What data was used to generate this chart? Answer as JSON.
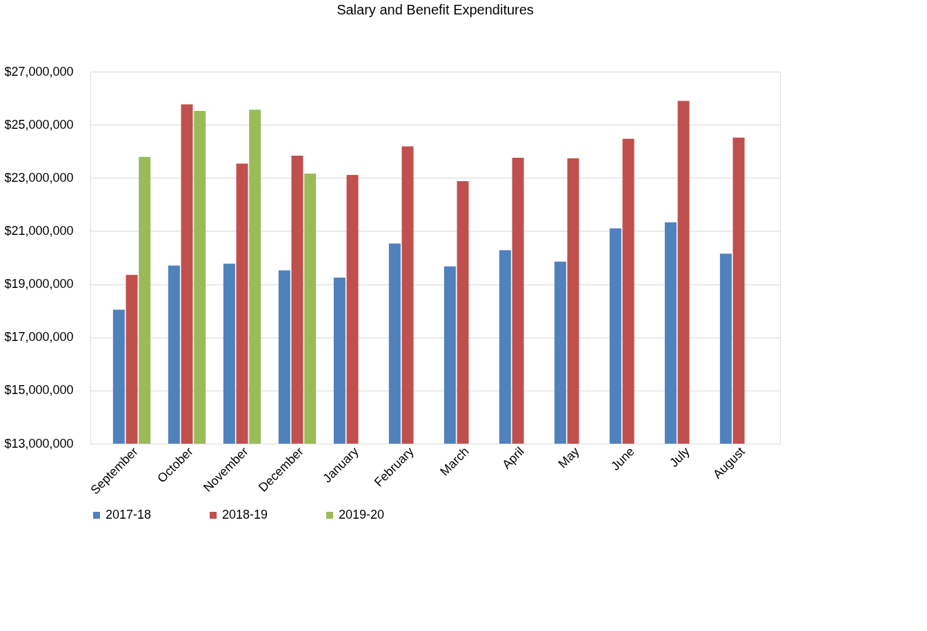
{
  "chart_data": {
    "type": "bar",
    "title": "Salary and Benefit Expenditures",
    "categories": [
      "September",
      "October",
      "November",
      "December",
      "January",
      "February",
      "March",
      "April",
      "May",
      "June",
      "July",
      "August"
    ],
    "series": [
      {
        "name": "2017-18",
        "color": "#4f81bd",
        "values": [
          18040000,
          19700000,
          19770000,
          19520000,
          19250000,
          20530000,
          19670000,
          20280000,
          19850000,
          21100000,
          21330000,
          20150000
        ]
      },
      {
        "name": "2018-19",
        "color": "#c0504d",
        "values": [
          19350000,
          25770000,
          23540000,
          23840000,
          23110000,
          24190000,
          22880000,
          23760000,
          23740000,
          24470000,
          25900000,
          24520000
        ]
      },
      {
        "name": "2019-20",
        "color": "#9bbb59",
        "values": [
          23790000,
          25520000,
          25570000,
          23160000,
          null,
          null,
          null,
          null,
          null,
          null,
          null,
          null
        ]
      }
    ],
    "ylim": [
      13000000,
      27000000
    ],
    "yticks": [
      {
        "value": 13000000,
        "label": "$13,000,000"
      },
      {
        "value": 15000000,
        "label": "$15,000,000"
      },
      {
        "value": 17000000,
        "label": "$17,000,000"
      },
      {
        "value": 19000000,
        "label": "$19,000,000"
      },
      {
        "value": 21000000,
        "label": "$21,000,000"
      },
      {
        "value": 23000000,
        "label": "$23,000,000"
      },
      {
        "value": 25000000,
        "label": "$25,000,000"
      },
      {
        "value": 27000000,
        "label": "$27,000,000"
      }
    ],
    "grid": "y",
    "legend": "bottom"
  }
}
